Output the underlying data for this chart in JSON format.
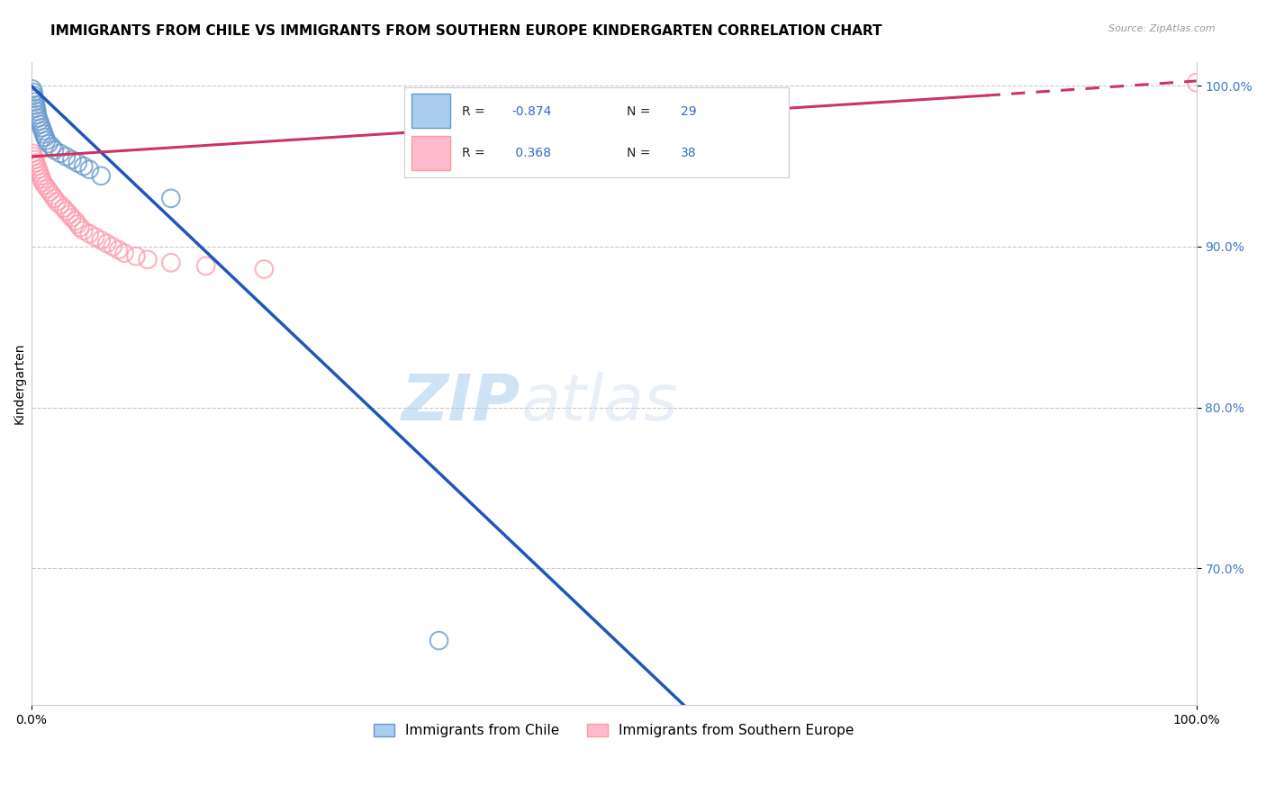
{
  "title": "IMMIGRANTS FROM CHILE VS IMMIGRANTS FROM SOUTHERN EUROPE KINDERGARTEN CORRELATION CHART",
  "source": "Source: ZipAtlas.com",
  "ylabel": "Kindergarten",
  "legend_labels": [
    "Immigrants from Chile",
    "Immigrants from Southern Europe"
  ],
  "chile_color": "#6699CC",
  "southern_color": "#FF99AA",
  "chile_R": -0.874,
  "chile_N": 29,
  "southern_R": 0.368,
  "southern_N": 38,
  "xlim": [
    0,
    1.0
  ],
  "ylim": [
    0.615,
    1.015
  ],
  "yticks": [
    0.7,
    0.8,
    0.9,
    1.0
  ],
  "ytick_labels": [
    "70.0%",
    "80.0%",
    "90.0%",
    "100.0%"
  ],
  "xticks": [
    0.0,
    1.0
  ],
  "xtick_labels": [
    "0.0%",
    "100.0%"
  ],
  "watermark_zip": "ZIP",
  "watermark_atlas": "atlas",
  "background_color": "#FFFFFF",
  "grid_color": "#BBBBBB",
  "title_fontsize": 11,
  "axis_label_fontsize": 10,
  "tick_fontsize": 10,
  "legend_fontsize": 11,
  "marker_size": 200,
  "line_width": 2.2,
  "chile_line_x0": 0.0,
  "chile_line_y0": 1.0,
  "chile_line_x1": 0.56,
  "chile_line_y1": 0.615,
  "southern_line_x0": 0.0,
  "southern_line_y0": 0.956,
  "southern_line_x1": 1.0,
  "southern_line_y1": 1.003,
  "chile_pts_x": [
    0.001,
    0.002,
    0.002,
    0.003,
    0.003,
    0.004,
    0.004,
    0.005,
    0.005,
    0.006,
    0.007,
    0.008,
    0.009,
    0.01,
    0.011,
    0.012,
    0.013,
    0.015,
    0.018,
    0.02,
    0.025,
    0.03,
    0.035,
    0.04,
    0.045,
    0.05,
    0.06,
    0.12,
    0.35
  ],
  "chile_pts_y": [
    0.998,
    0.996,
    0.994,
    0.992,
    0.99,
    0.988,
    0.986,
    0.984,
    0.982,
    0.98,
    0.978,
    0.976,
    0.974,
    0.972,
    0.97,
    0.968,
    0.966,
    0.964,
    0.962,
    0.96,
    0.958,
    0.956,
    0.954,
    0.952,
    0.95,
    0.948,
    0.944,
    0.93,
    0.655
  ],
  "southern_pts_x": [
    0.001,
    0.002,
    0.003,
    0.004,
    0.005,
    0.006,
    0.007,
    0.008,
    0.009,
    0.01,
    0.012,
    0.014,
    0.016,
    0.018,
    0.02,
    0.022,
    0.025,
    0.028,
    0.03,
    0.033,
    0.035,
    0.038,
    0.04,
    0.042,
    0.045,
    0.05,
    0.055,
    0.06,
    0.065,
    0.07,
    0.075,
    0.08,
    0.09,
    0.1,
    0.12,
    0.15,
    0.2,
    1.0
  ],
  "southern_pts_y": [
    0.958,
    0.956,
    0.954,
    0.952,
    0.95,
    0.948,
    0.946,
    0.944,
    0.942,
    0.94,
    0.938,
    0.936,
    0.934,
    0.932,
    0.93,
    0.928,
    0.926,
    0.924,
    0.922,
    0.92,
    0.918,
    0.916,
    0.914,
    0.912,
    0.91,
    0.908,
    0.906,
    0.904,
    0.902,
    0.9,
    0.898,
    0.896,
    0.894,
    0.892,
    0.89,
    0.888,
    0.886,
    1.002
  ]
}
